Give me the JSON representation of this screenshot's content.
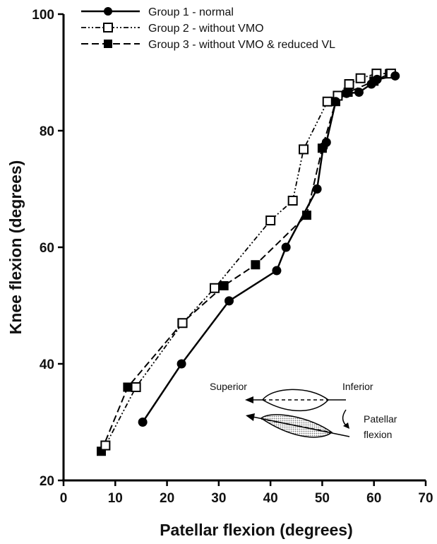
{
  "chart_data": {
    "type": "line",
    "xlabel": "Patellar flexion (degrees)",
    "ylabel": "Knee flexion (degrees)",
    "xlim": [
      0,
      70
    ],
    "ylim": [
      20,
      100
    ],
    "x_ticks": [
      "0",
      "10",
      "20",
      "30",
      "40",
      "50",
      "60",
      "70"
    ],
    "y_ticks": [
      "20",
      "40",
      "60",
      "80",
      "100"
    ],
    "grid": false,
    "legend_position": "top-left",
    "series": [
      {
        "name": "Group 1 - normal",
        "line_style": "solid",
        "marker": "filled-circle",
        "points": [
          [
            15.3,
            30
          ],
          [
            22.8,
            40
          ],
          [
            32.0,
            50.8
          ],
          [
            41.2,
            56
          ],
          [
            43.0,
            60
          ],
          [
            49.0,
            70
          ],
          [
            50.2,
            77.2
          ],
          [
            50.8,
            78
          ],
          [
            52.6,
            85
          ],
          [
            54.7,
            86.4
          ],
          [
            57.1,
            86.6
          ],
          [
            59.5,
            88
          ],
          [
            60.6,
            88.8
          ],
          [
            64.1,
            89.4
          ]
        ]
      },
      {
        "name": "Group 2 - without VMO",
        "line_style": "dash-dot-dot",
        "marker": "open-square",
        "points": [
          [
            8.1,
            26
          ],
          [
            14.0,
            36
          ],
          [
            23.0,
            47
          ],
          [
            29.2,
            53
          ],
          [
            40.0,
            64.6
          ],
          [
            44.3,
            68
          ],
          [
            46.4,
            76.8
          ],
          [
            51.0,
            85
          ],
          [
            53.0,
            86
          ],
          [
            55.2,
            88
          ],
          [
            57.4,
            89
          ],
          [
            60.5,
            89.8
          ],
          [
            63.3,
            89.8
          ]
        ]
      },
      {
        "name": "Group 3 - without VMO & reduced VL",
        "line_style": "dashed",
        "marker": "filled-square",
        "points": [
          [
            7.3,
            25
          ],
          [
            12.4,
            36
          ],
          [
            22.9,
            47
          ],
          [
            31.0,
            53.4
          ],
          [
            37.1,
            57
          ],
          [
            47.0,
            65.5
          ],
          [
            50.0,
            77
          ],
          [
            52.6,
            85
          ],
          [
            55.0,
            86.6
          ],
          [
            60.0,
            88.5
          ],
          [
            63.0,
            89.8
          ]
        ]
      }
    ],
    "inset": {
      "label_left": "Superior",
      "label_right": "Inferior",
      "label_bottom_line1": "Patellar",
      "label_bottom_line2": "flexion"
    }
  }
}
